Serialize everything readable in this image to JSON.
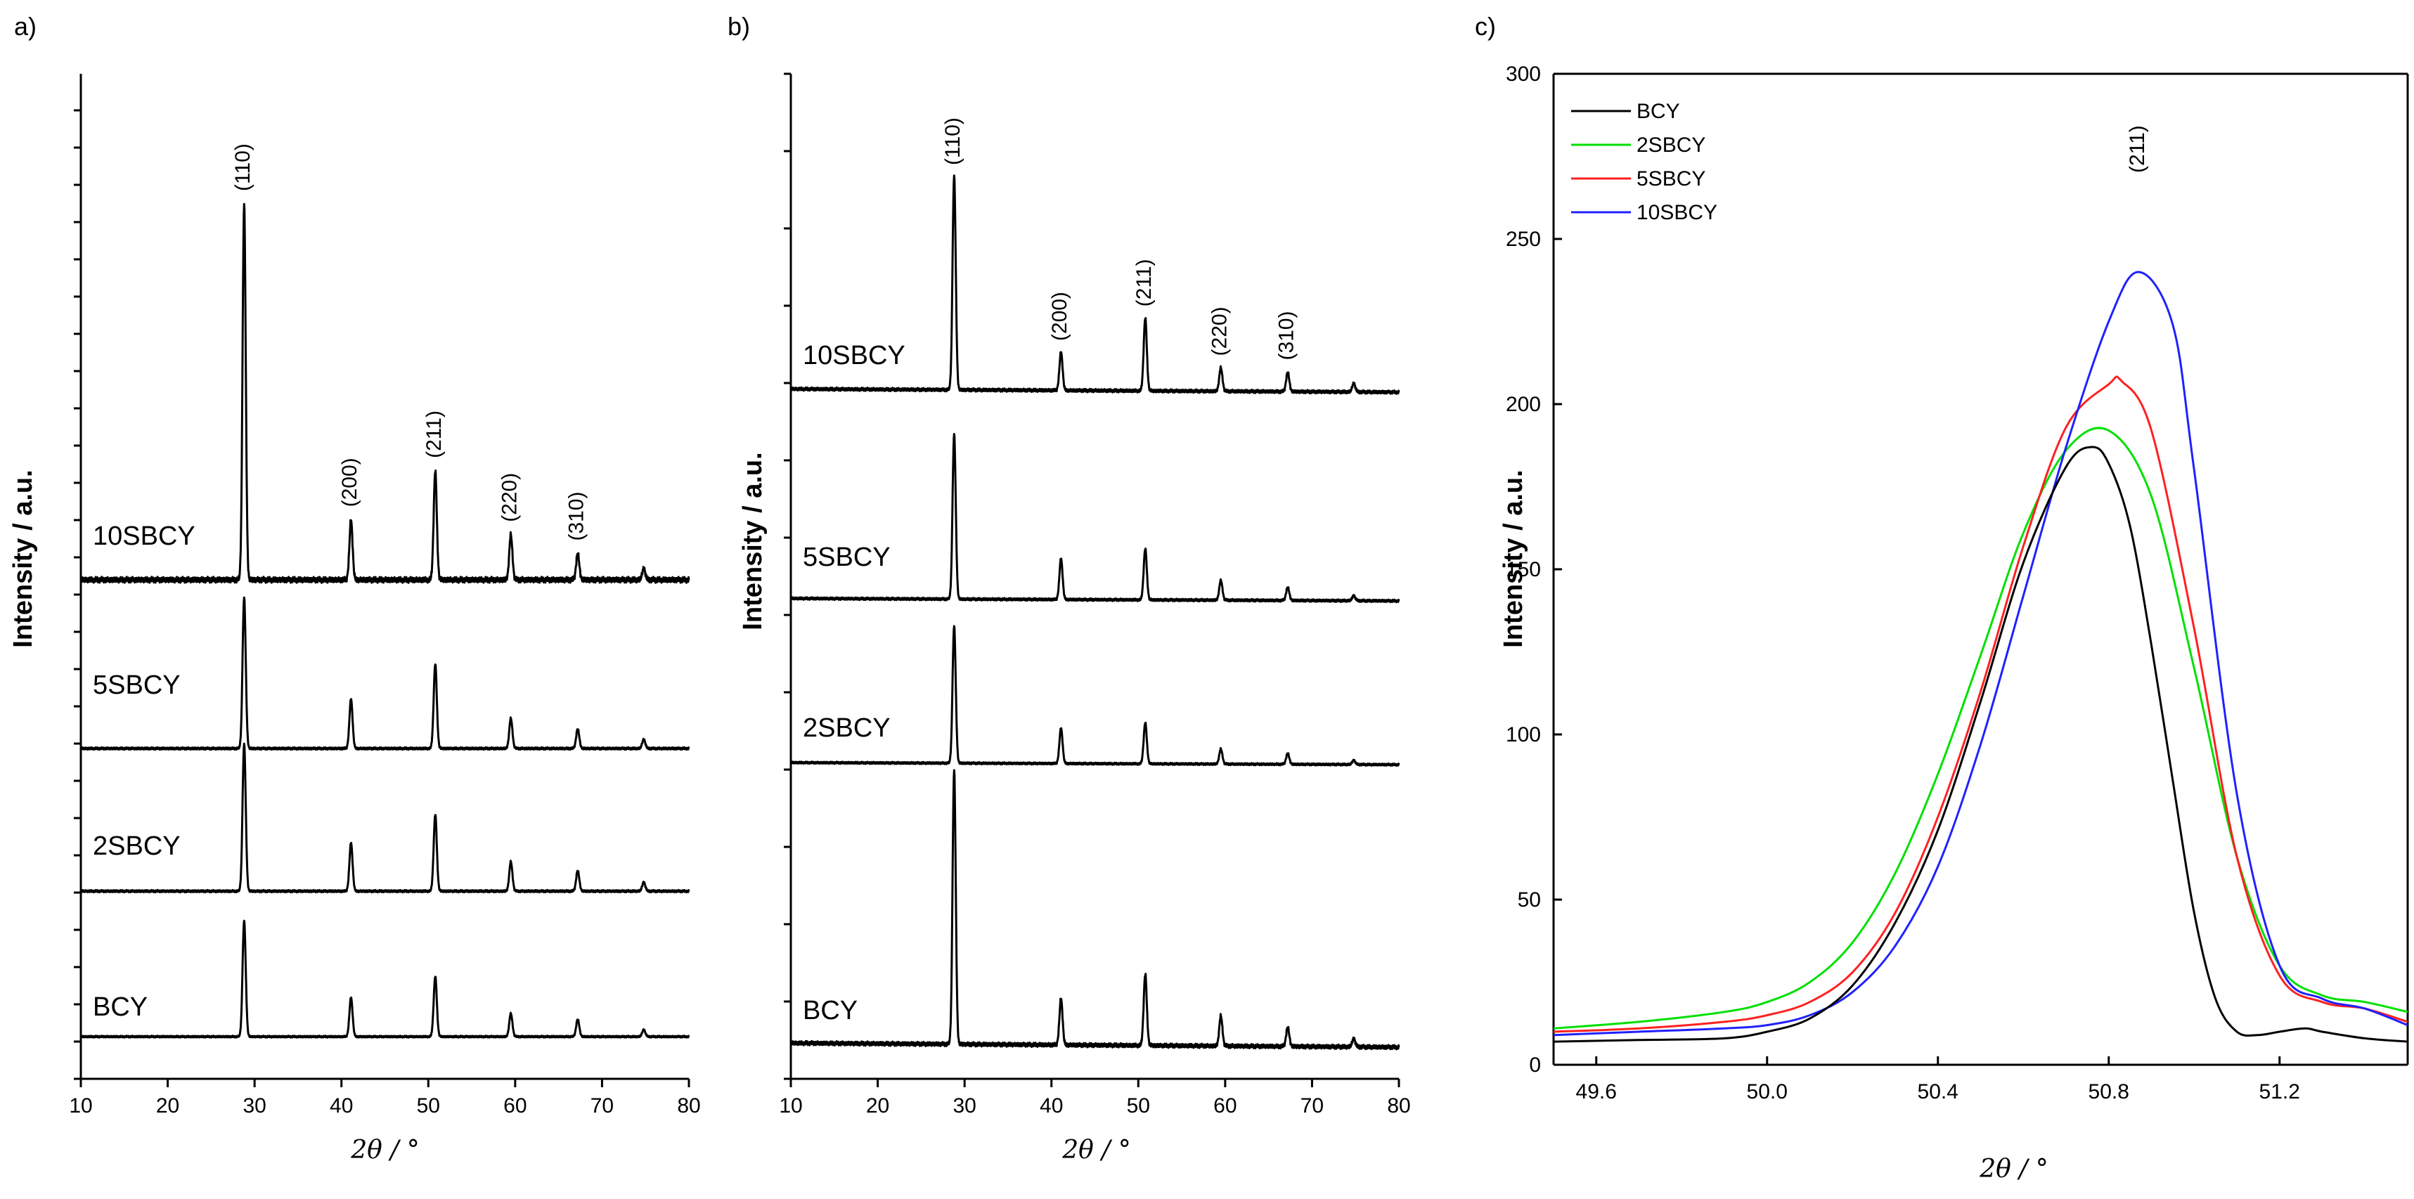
{
  "chart_data": [
    {
      "type": "line",
      "panel_label": "a)",
      "xlabel": "2θ / °",
      "ylabel": "Intensity / a.u.",
      "xlim": [
        10,
        80
      ],
      "xticks": [
        10,
        20,
        30,
        40,
        50,
        60,
        70,
        80
      ],
      "series": [
        {
          "name": "BCY",
          "color": "#000000",
          "peaks": [
            {
              "x": 28.8,
              "h": 1.0
            },
            {
              "x": 41.1,
              "h": 0.34
            },
            {
              "x": 50.8,
              "h": 0.52
            },
            {
              "x": 59.5,
              "h": 0.2
            },
            {
              "x": 67.2,
              "h": 0.15
            },
            {
              "x": 74.8,
              "h": 0.06
            }
          ]
        },
        {
          "name": "2SBCY",
          "color": "#000000",
          "peaks": [
            {
              "x": 28.8,
              "h": 1.0
            },
            {
              "x": 41.1,
              "h": 0.33
            },
            {
              "x": 50.8,
              "h": 0.52
            },
            {
              "x": 59.5,
              "h": 0.2
            },
            {
              "x": 67.2,
              "h": 0.14
            },
            {
              "x": 74.8,
              "h": 0.06
            }
          ]
        },
        {
          "name": "5SBCY",
          "color": "#000000",
          "peaks": [
            {
              "x": 28.8,
              "h": 1.0
            },
            {
              "x": 41.1,
              "h": 0.33
            },
            {
              "x": 50.8,
              "h": 0.56
            },
            {
              "x": 59.5,
              "h": 0.2
            },
            {
              "x": 67.2,
              "h": 0.13
            },
            {
              "x": 74.8,
              "h": 0.06
            }
          ]
        },
        {
          "name": "10SBCY",
          "color": "#000000",
          "peaks": [
            {
              "x": 28.8,
              "h": 1.0
            },
            {
              "x": 41.1,
              "h": 0.16
            },
            {
              "x": 50.8,
              "h": 0.29
            },
            {
              "x": 59.5,
              "h": 0.12
            },
            {
              "x": 67.2,
              "h": 0.07
            },
            {
              "x": 74.8,
              "h": 0.03
            }
          ]
        }
      ],
      "annotations": [
        {
          "text": "(110)",
          "x": 28.8
        },
        {
          "text": "(200)",
          "x": 41.1
        },
        {
          "text": "(211)",
          "x": 50.8
        },
        {
          "text": "(220)",
          "x": 59.5
        },
        {
          "text": "(310)",
          "x": 67.2
        }
      ]
    },
    {
      "type": "line",
      "panel_label": "b)",
      "xlabel": "2θ / °",
      "ylabel": "Intensity / a.u.",
      "xlim": [
        10,
        80
      ],
      "xticks": [
        10,
        20,
        30,
        40,
        50,
        60,
        70,
        80
      ],
      "series": [
        {
          "name": "BCY",
          "color": "#000000",
          "peaks": [
            {
              "x": 28.8,
              "h": 1.0
            },
            {
              "x": 41.1,
              "h": 0.17
            },
            {
              "x": 50.8,
              "h": 0.26
            },
            {
              "x": 59.5,
              "h": 0.11
            },
            {
              "x": 67.2,
              "h": 0.07
            },
            {
              "x": 74.8,
              "h": 0.03
            }
          ]
        },
        {
          "name": "2SBCY",
          "color": "#000000",
          "peaks": [
            {
              "x": 28.8,
              "h": 1.0
            },
            {
              "x": 41.1,
              "h": 0.26
            },
            {
              "x": 50.8,
              "h": 0.3
            },
            {
              "x": 59.5,
              "h": 0.11
            },
            {
              "x": 67.2,
              "h": 0.08
            },
            {
              "x": 74.8,
              "h": 0.03
            }
          ]
        },
        {
          "name": "5SBCY",
          "color": "#000000",
          "peaks": [
            {
              "x": 28.8,
              "h": 1.0
            },
            {
              "x": 41.1,
              "h": 0.25
            },
            {
              "x": 50.8,
              "h": 0.31
            },
            {
              "x": 59.5,
              "h": 0.12
            },
            {
              "x": 67.2,
              "h": 0.08
            },
            {
              "x": 74.8,
              "h": 0.03
            }
          ]
        },
        {
          "name": "10SBCY",
          "color": "#000000",
          "peaks": [
            {
              "x": 28.8,
              "h": 1.0
            },
            {
              "x": 41.1,
              "h": 0.18
            },
            {
              "x": 50.8,
              "h": 0.34
            },
            {
              "x": 59.5,
              "h": 0.11
            },
            {
              "x": 67.2,
              "h": 0.09
            },
            {
              "x": 74.8,
              "h": 0.04
            }
          ]
        }
      ],
      "annotations": [
        {
          "text": "(110)",
          "x": 28.8
        },
        {
          "text": "(200)",
          "x": 41.1
        },
        {
          "text": "(211)",
          "x": 50.8
        },
        {
          "text": "(220)",
          "x": 59.5
        },
        {
          "text": "(310)",
          "x": 67.2
        }
      ]
    },
    {
      "type": "line",
      "panel_label": "c)",
      "xlabel": "2θ / °",
      "ylabel": "Intensity / a.u.",
      "xlim": [
        49.5,
        51.5
      ],
      "ylim": [
        0,
        300
      ],
      "xticks": [
        49.6,
        50.0,
        50.4,
        50.8,
        51.2
      ],
      "yticks": [
        0,
        50,
        100,
        150,
        200,
        250,
        300
      ],
      "annotation": {
        "text": "(211)",
        "x": 50.87,
        "y": 270
      },
      "series": [
        {
          "name": "BCY",
          "color": "#000000",
          "x": [
            49.5,
            49.7,
            49.9,
            50.0,
            50.1,
            50.2,
            50.3,
            50.4,
            50.5,
            50.6,
            50.7,
            50.76,
            50.8,
            50.85,
            50.9,
            50.95,
            51.0,
            51.05,
            51.1,
            51.15,
            51.2,
            51.26,
            51.3,
            51.4,
            51.5
          ],
          "y": [
            7,
            7.5,
            8,
            10,
            14,
            24,
            43,
            71,
            110,
            152,
            181,
            187,
            182,
            163,
            127,
            86,
            46,
            20,
            10,
            9,
            10,
            11,
            10,
            8,
            7
          ]
        },
        {
          "name": "2SBCY",
          "color": "#00e000",
          "x": [
            49.5,
            49.7,
            49.9,
            50.0,
            50.1,
            50.2,
            50.3,
            50.4,
            50.5,
            50.6,
            50.7,
            50.8,
            50.9,
            51.0,
            51.1,
            51.2,
            51.3,
            51.4,
            51.5
          ],
          "y": [
            11,
            13,
            16,
            19,
            25,
            37,
            58,
            88,
            124,
            161,
            186,
            192,
            172,
            120,
            63,
            30,
            21,
            19,
            16
          ]
        },
        {
          "name": "5SBCY",
          "color": "#ff2020",
          "x": [
            49.5,
            49.7,
            49.9,
            50.0,
            50.1,
            50.2,
            50.3,
            50.4,
            50.5,
            50.6,
            50.7,
            50.8,
            50.83,
            50.9,
            51.0,
            51.1,
            51.2,
            51.3,
            51.4,
            51.5
          ],
          "y": [
            10,
            11,
            13,
            15,
            19,
            28,
            46,
            75,
            113,
            157,
            193,
            206,
            207,
            192,
            132,
            63,
            27,
            19,
            17,
            13
          ]
        },
        {
          "name": "10SBCY",
          "color": "#2020ff",
          "x": [
            49.5,
            49.7,
            49.9,
            50.0,
            50.1,
            50.2,
            50.3,
            50.4,
            50.5,
            50.6,
            50.7,
            50.8,
            50.87,
            50.95,
            51.0,
            51.1,
            51.2,
            51.3,
            51.4,
            51.5
          ],
          "y": [
            9,
            10,
            11,
            12,
            15,
            22,
            36,
            60,
            97,
            142,
            187,
            225,
            240,
            224,
            180,
            82,
            30,
            20,
            17,
            12
          ]
        }
      ]
    }
  ]
}
